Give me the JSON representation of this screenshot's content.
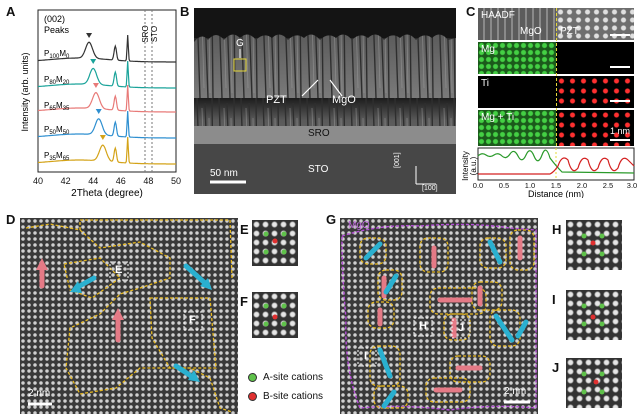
{
  "labels": {
    "A": "A",
    "B": "B",
    "C": "C",
    "D": "D",
    "E": "E",
    "F": "F",
    "G": "G",
    "H": "H",
    "I": "I",
    "J": "J"
  },
  "panelA": {
    "ylabel": "Intensity (arb. units)",
    "xlabel": "2Theta (degree)",
    "peak_title_1": "(002)",
    "peak_title_2": "Peaks",
    "sro": "SRO",
    "sto": "STO",
    "xticks": [
      "40",
      "42",
      "44",
      "46",
      "48",
      "50"
    ],
    "series": [
      {
        "name_base": "P",
        "sub1": "100",
        "name_mid": "M",
        "sub2": "0",
        "color": "#333333"
      },
      {
        "name_base": "P",
        "sub1": "80",
        "name_mid": "M",
        "sub2": "20",
        "color": "#1aa39a"
      },
      {
        "name_base": "P",
        "sub1": "65",
        "name_mid": "M",
        "sub2": "35",
        "color": "#e87a78"
      },
      {
        "name_base": "P",
        "sub1": "50",
        "name_mid": "M",
        "sub2": "50",
        "color": "#2e8fd0"
      },
      {
        "name_base": "P",
        "sub1": "35",
        "name_mid": "M",
        "sub2": "65",
        "color": "#d4a318"
      }
    ]
  },
  "panelB": {
    "g": "G",
    "pzt": "PZT",
    "mgo": "MgO",
    "sro": "SRO",
    "sto": "STO",
    "scale": "50 nm",
    "dir1": "[001]",
    "dir2": "[100]"
  },
  "panelC": {
    "haadf": "HAADF",
    "mgo": "MgO",
    "pzt": "PZT",
    "mg": "Mg",
    "ti": "Ti",
    "mgti": "Mg + Ti",
    "scale": "1 nm",
    "ylabel1": "Intensity",
    "ylabel2": "(a.u.)",
    "xlabel": "Distance (nm)",
    "xticks": [
      "0.0",
      "0.5",
      "1.0",
      "1.5",
      "2.0",
      "2.5",
      "3.0"
    ]
  },
  "panelD": {
    "e": "E",
    "f": "F",
    "scale": "2 nm"
  },
  "legend": {
    "a_site": "A-site cations",
    "b_site": "B-site cations"
  },
  "panelG": {
    "mgo": "MgO",
    "h": "H",
    "i": "I",
    "j": "J",
    "scale": "2 nm"
  }
}
